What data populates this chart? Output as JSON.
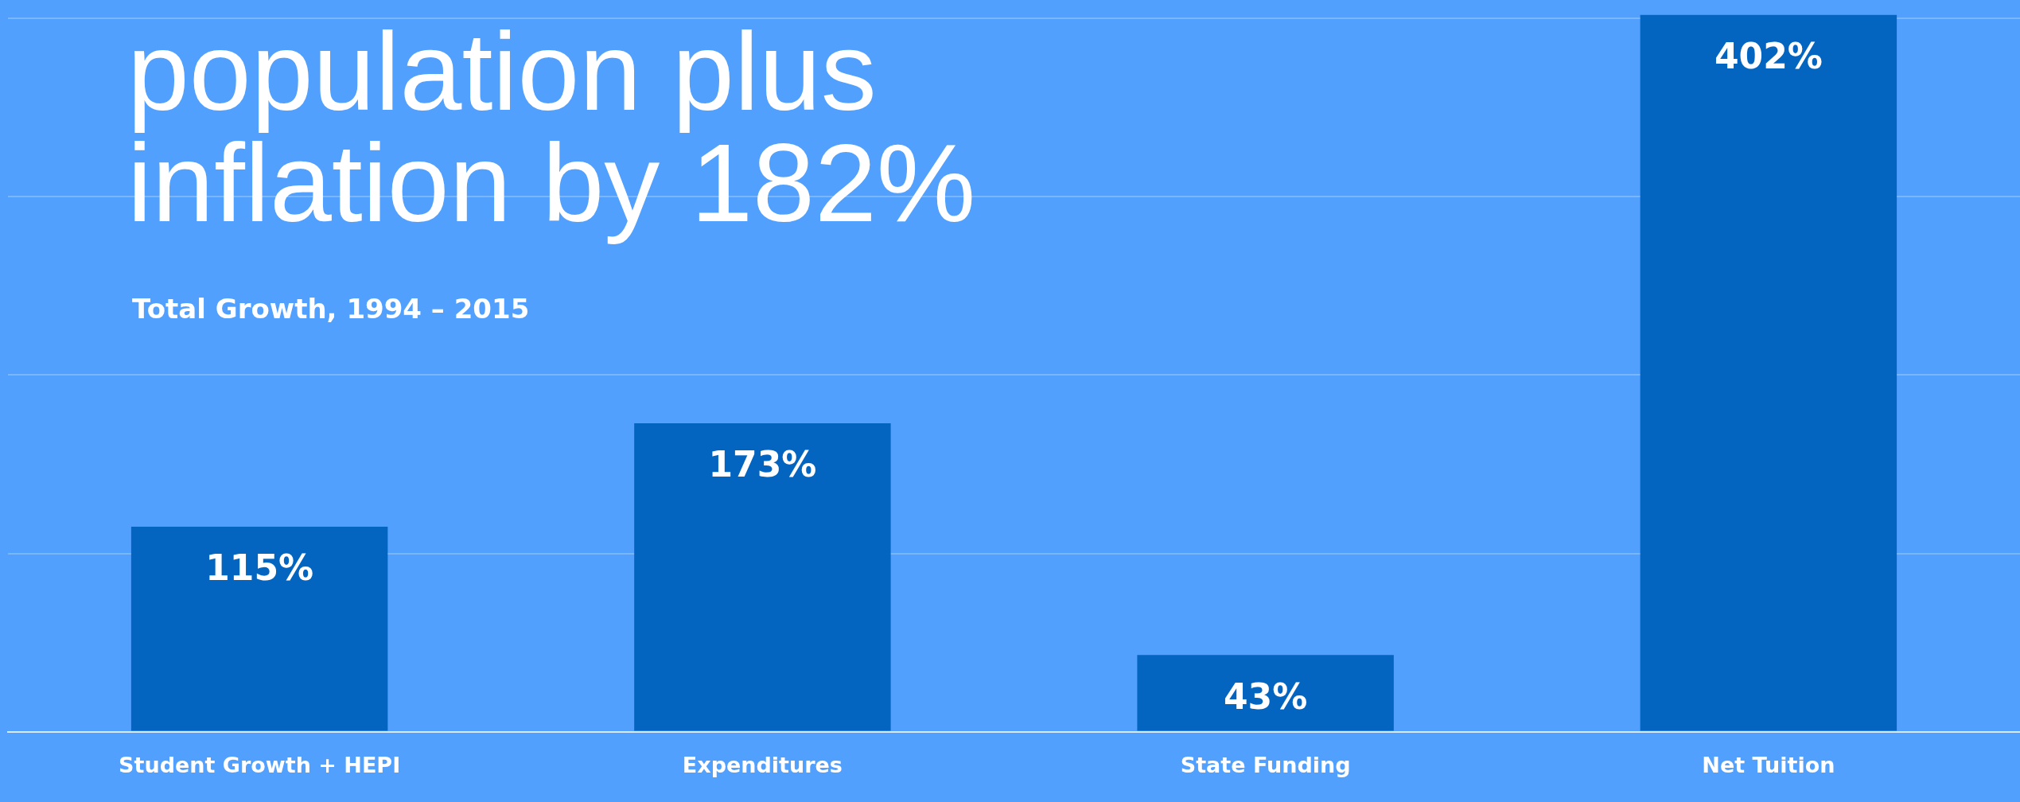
{
  "chart_data": {
    "type": "bar",
    "title": "population plus inflation by 182%",
    "subtitle": "Total Growth, 1994 – 2015",
    "categories": [
      "Student Growth + HEPI",
      "Expenditures",
      "State Funding",
      "Net Tuition"
    ],
    "values": [
      115,
      173,
      43,
      402
    ],
    "color": "#0465c1",
    "value_labels": [
      "115%",
      "173%",
      "43%",
      "402%"
    ],
    "ylim": [
      0,
      405
    ],
    "yticks": [
      {
        "value": 0,
        "label": null
      },
      {
        "value": 100,
        "label": null
      },
      {
        "value": 200,
        "label": null
      },
      {
        "value": 300,
        "label": null
      },
      {
        "value": 400,
        "label": null
      }
    ],
    "grid": "y",
    "tick_labels": "x",
    "legend": false
  }
}
